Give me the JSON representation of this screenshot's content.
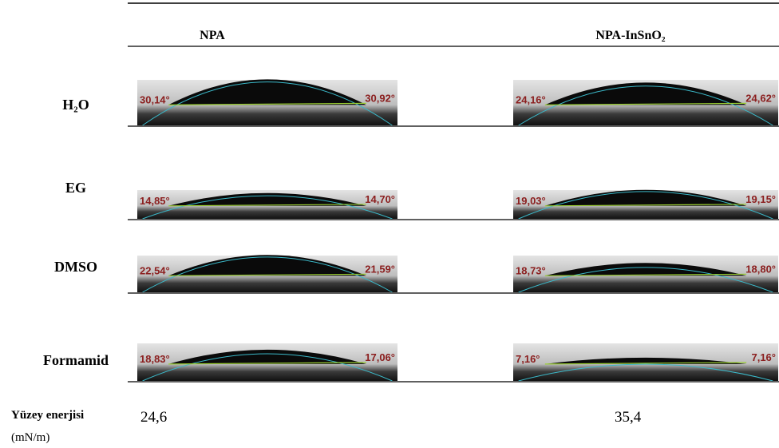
{
  "table": {
    "columns": [
      "NPA",
      "NPA-InSnO₂"
    ],
    "rows": [
      {
        "label": "H₂O",
        "cells": [
          {
            "left": "30,14°",
            "right": "30,92°"
          },
          {
            "left": "24,16°",
            "right": "24,62°"
          }
        ]
      },
      {
        "label": "EG",
        "cells": [
          {
            "left": "14,85°",
            "right": "14,70°"
          },
          {
            "left": "19,03°",
            "right": "19,15°"
          }
        ]
      },
      {
        "label": "DMSO",
        "cells": [
          {
            "left": "22,54°",
            "right": "21,59°"
          },
          {
            "left": "18,73°",
            "right": "18,80°"
          }
        ]
      },
      {
        "label": "Formamid",
        "cells": [
          {
            "left": "18,83°",
            "right": "17,06°"
          },
          {
            "left": "7,16°",
            "right": "7,16°"
          }
        ]
      }
    ],
    "footer": {
      "label": "Yüzey enerjisi",
      "unit": "(mN/m)",
      "values": [
        "24,6",
        "35,4"
      ]
    }
  }
}
